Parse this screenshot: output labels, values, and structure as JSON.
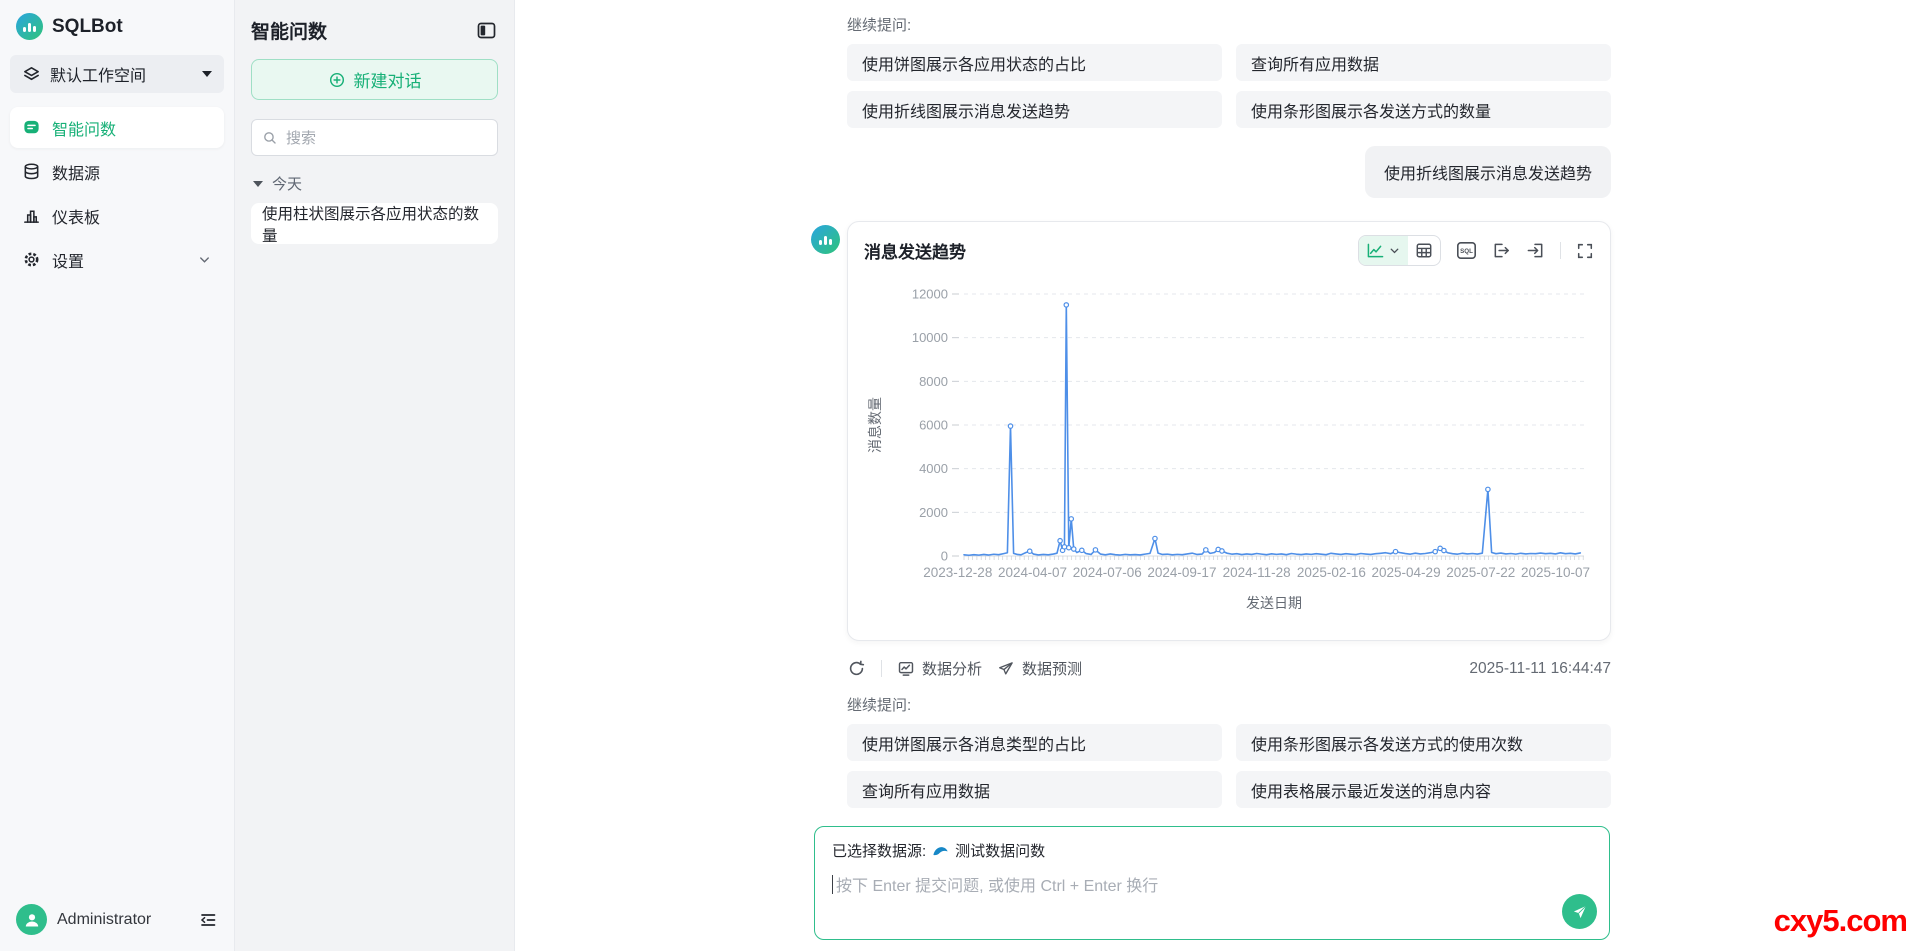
{
  "app": {
    "name": "SQLBot"
  },
  "sidebar": {
    "workspace": "默认工作空间",
    "items": [
      {
        "label": "智能问数",
        "icon": "chat-icon",
        "active": true
      },
      {
        "label": "数据源",
        "icon": "database-icon",
        "active": false
      },
      {
        "label": "仪表板",
        "icon": "dashboard-icon",
        "active": false
      },
      {
        "label": "设置",
        "icon": "gear-icon",
        "active": false,
        "expandable": true
      }
    ],
    "user": "Administrator"
  },
  "panel": {
    "title": "智能问数",
    "new_chat": "新建对话",
    "search_placeholder": "搜索",
    "group": "今天",
    "conversations": [
      "使用柱状图展示各应用状态的数量"
    ]
  },
  "chat": {
    "suggest_label": "继续提问:",
    "top_suggestions": [
      "使用饼图展示各应用状态的占比",
      "查询所有应用数据",
      "使用折线图展示消息发送趋势",
      "使用条形图展示各发送方式的数量"
    ],
    "user_message": "使用折线图展示消息发送趋势",
    "card": {
      "title": "消息发送趋势",
      "sql_label": "SQL"
    },
    "actions": {
      "analyze": "数据分析",
      "forecast": "数据预测",
      "timestamp": "2025-11-11 16:44:47"
    },
    "bottom_suggestions": [
      "使用饼图展示各消息类型的占比",
      "使用条形图展示各发送方式的使用次数",
      "查询所有应用数据",
      "使用表格展示最近发送的消息内容"
    ],
    "input": {
      "datasource_prefix": "已选择数据源:",
      "datasource": "测试数据问数",
      "placeholder": "按下 Enter 提交问题, 或使用 Ctrl + Enter 换行"
    }
  },
  "watermark": "cxy5.com",
  "colors": {
    "brand_green": "#17b077",
    "send_green": "#2fbe8c",
    "chart_line": "#4e8fe8",
    "watermark_red": "#fe0000"
  },
  "icons": {
    "toolbar": [
      "line-chart-icon",
      "chevron-down-icon",
      "table-icon",
      "sql-icon",
      "export-icon",
      "import-icon",
      "fullscreen-icon"
    ],
    "actions": [
      "refresh-icon",
      "analyze-icon",
      "forecast-icon"
    ],
    "datasource": "mysql-dolphin-icon"
  },
  "chart_data": {
    "type": "line",
    "title": "消息发送趋势",
    "xlabel": "发送日期",
    "ylabel": "消息数量",
    "ylim": [
      0,
      12000
    ],
    "yticks": [
      0,
      2000,
      4000,
      6000,
      8000,
      10000,
      12000
    ],
    "x_tick_labels": [
      "2023-12-28",
      "2024-04-07",
      "2024-07-06",
      "2024-09-17",
      "2024-11-28",
      "2025-02-16",
      "2025-04-29",
      "2025-07-22",
      "2025-10-07"
    ],
    "x_encoding": "fraction of x-axis width 0-1 (daily date category axis, individual dates unlabeled)",
    "grid": "horizontal dashed",
    "legend": "none",
    "series": [
      {
        "name": "消息数量",
        "color": "#4e8fe8",
        "points": [
          [
            0,
            55
          ],
          [
            0.008,
            35
          ],
          [
            0.016,
            60
          ],
          [
            0.024,
            40
          ],
          [
            0.032,
            70
          ],
          [
            0.04,
            45
          ],
          [
            0.048,
            80
          ],
          [
            0.056,
            60
          ],
          [
            0.064,
            110
          ],
          [
            0.07,
            150
          ],
          [
            0.075,
            5950
          ],
          [
            0.08,
            120
          ],
          [
            0.086,
            70
          ],
          [
            0.092,
            55
          ],
          [
            0.1,
            160
          ],
          [
            0.106,
            220
          ],
          [
            0.112,
            90
          ],
          [
            0.12,
            50
          ],
          [
            0.128,
            70
          ],
          [
            0.136,
            55
          ],
          [
            0.144,
            90
          ],
          [
            0.15,
            130
          ],
          [
            0.155,
            700
          ],
          [
            0.159,
            260
          ],
          [
            0.162,
            420
          ],
          [
            0.165,
            11500
          ],
          [
            0.169,
            380
          ],
          [
            0.173,
            1700
          ],
          [
            0.177,
            320
          ],
          [
            0.182,
            160
          ],
          [
            0.19,
            260
          ],
          [
            0.197,
            110
          ],
          [
            0.205,
            70
          ],
          [
            0.212,
            280
          ],
          [
            0.22,
            90
          ],
          [
            0.228,
            55
          ],
          [
            0.236,
            95
          ],
          [
            0.244,
            60
          ],
          [
            0.252,
            45
          ],
          [
            0.26,
            75
          ],
          [
            0.268,
            55
          ],
          [
            0.276,
            65
          ],
          [
            0.284,
            50
          ],
          [
            0.292,
            85
          ],
          [
            0.3,
            120
          ],
          [
            0.308,
            800
          ],
          [
            0.313,
            130
          ],
          [
            0.32,
            70
          ],
          [
            0.328,
            85
          ],
          [
            0.336,
            55
          ],
          [
            0.344,
            75
          ],
          [
            0.352,
            60
          ],
          [
            0.36,
            95
          ],
          [
            0.368,
            130
          ],
          [
            0.376,
            70
          ],
          [
            0.384,
            90
          ],
          [
            0.39,
            280
          ],
          [
            0.397,
            120
          ],
          [
            0.404,
            160
          ],
          [
            0.41,
            300
          ],
          [
            0.416,
            230
          ],
          [
            0.424,
            130
          ],
          [
            0.432,
            85
          ],
          [
            0.44,
            105
          ],
          [
            0.448,
            65
          ],
          [
            0.456,
            95
          ],
          [
            0.464,
            70
          ],
          [
            0.472,
            115
          ],
          [
            0.48,
            85
          ],
          [
            0.488,
            60
          ],
          [
            0.496,
            100
          ],
          [
            0.504,
            75
          ],
          [
            0.512,
            95
          ],
          [
            0.52,
            60
          ],
          [
            0.528,
            115
          ],
          [
            0.536,
            85
          ],
          [
            0.544,
            65
          ],
          [
            0.552,
            95
          ],
          [
            0.56,
            75
          ],
          [
            0.568,
            105
          ],
          [
            0.576,
            85
          ],
          [
            0.584,
            60
          ],
          [
            0.592,
            125
          ],
          [
            0.6,
            95
          ],
          [
            0.608,
            70
          ],
          [
            0.616,
            105
          ],
          [
            0.624,
            85
          ],
          [
            0.632,
            65
          ],
          [
            0.64,
            115
          ],
          [
            0.648,
            90
          ],
          [
            0.656,
            70
          ],
          [
            0.664,
            105
          ],
          [
            0.672,
            125
          ],
          [
            0.68,
            150
          ],
          [
            0.688,
            105
          ],
          [
            0.696,
            200
          ],
          [
            0.704,
            150
          ],
          [
            0.712,
            110
          ],
          [
            0.72,
            85
          ],
          [
            0.728,
            130
          ],
          [
            0.736,
            95
          ],
          [
            0.744,
            115
          ],
          [
            0.752,
            150
          ],
          [
            0.76,
            200
          ],
          [
            0.768,
            350
          ],
          [
            0.774,
            250
          ],
          [
            0.78,
            150
          ],
          [
            0.788,
            105
          ],
          [
            0.796,
            85
          ],
          [
            0.804,
            125
          ],
          [
            0.812,
            95
          ],
          [
            0.82,
            115
          ],
          [
            0.828,
            90
          ],
          [
            0.836,
            130
          ],
          [
            0.845,
            3050
          ],
          [
            0.851,
            160
          ],
          [
            0.858,
            105
          ],
          [
            0.866,
            135
          ],
          [
            0.874,
            95
          ],
          [
            0.882,
            115
          ],
          [
            0.89,
            85
          ],
          [
            0.898,
            125
          ],
          [
            0.906,
            95
          ],
          [
            0.914,
            115
          ],
          [
            0.922,
            105
          ],
          [
            0.93,
            135
          ],
          [
            0.938,
            105
          ],
          [
            0.946,
            125
          ],
          [
            0.954,
            95
          ],
          [
            0.962,
            145
          ],
          [
            0.97,
            105
          ],
          [
            0.978,
            125
          ],
          [
            0.986,
            95
          ],
          [
            0.994,
            140
          ]
        ]
      }
    ],
    "notable_spikes": [
      {
        "x_frac": 0.075,
        "value": 5950
      },
      {
        "x_frac": 0.165,
        "value": 11500
      },
      {
        "x_frac": 0.173,
        "value": 1700
      },
      {
        "x_frac": 0.308,
        "value": 800
      },
      {
        "x_frac": 0.845,
        "value": 3050
      }
    ]
  }
}
